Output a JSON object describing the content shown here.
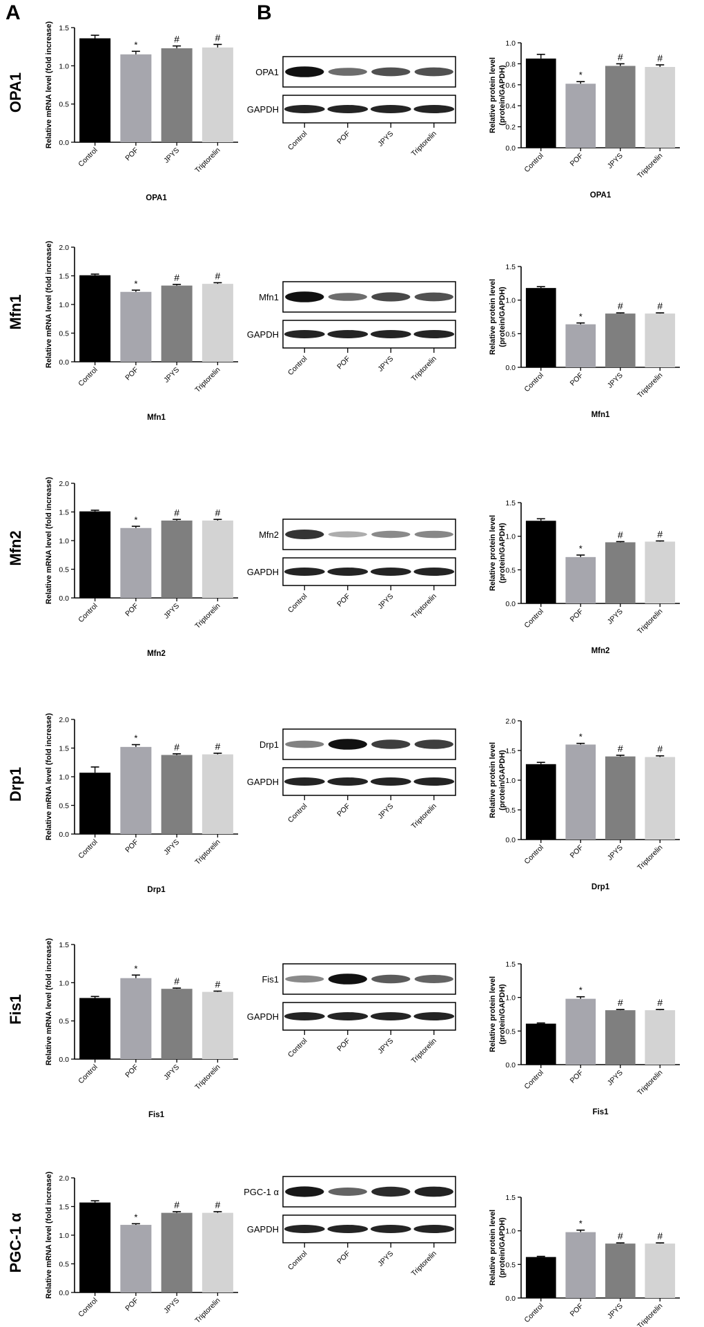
{
  "panel_labels": [
    "A",
    "B"
  ],
  "blot_lanes": [
    "Control",
    "POF",
    "JPYS",
    "Triptorelin"
  ],
  "loading_control": "GAPDH",
  "colors": [
    "#000000",
    "#a6a6ad",
    "#7f7f7f",
    "#d3d3d3"
  ],
  "chart_data": [
    {
      "row": "OPA1",
      "panel": "A",
      "type": "bar",
      "categories": [
        "Control",
        "POF",
        "JPYS",
        "Triptorelin"
      ],
      "values": [
        1.36,
        1.15,
        1.23,
        1.24
      ],
      "errors": [
        0.04,
        0.04,
        0.03,
        0.04
      ],
      "marks": [
        "",
        "*",
        "#",
        "#"
      ],
      "ylabel": "Relative mRNA level (fold increase)",
      "xlabel": "OPA1",
      "ylim": [
        0,
        1.5
      ],
      "yticks": [
        "0.0",
        "0.5",
        "1.0",
        "1.5"
      ]
    },
    {
      "row": "OPA1",
      "panel": "B",
      "type": "bar",
      "categories": [
        "Control",
        "POF",
        "JPYS",
        "Triptorelin"
      ],
      "values": [
        0.85,
        0.61,
        0.78,
        0.77
      ],
      "errors": [
        0.04,
        0.02,
        0.02,
        0.02
      ],
      "marks": [
        "",
        "*",
        "#",
        "#"
      ],
      "ylabel": "Relative protein level (protein/GAPDH)",
      "xlabel": "OPA1",
      "ylim": [
        0,
        1.0
      ],
      "yticks": [
        "0.0",
        "0.2",
        "0.4",
        "0.6",
        "0.8",
        "1.0"
      ]
    },
    {
      "row": "Mfn1",
      "panel": "A",
      "type": "bar",
      "categories": [
        "Control",
        "POF",
        "JPYS",
        "Triptorelin"
      ],
      "values": [
        1.51,
        1.22,
        1.33,
        1.36
      ],
      "errors": [
        0.02,
        0.03,
        0.02,
        0.02
      ],
      "marks": [
        "",
        "*",
        "#",
        "#"
      ],
      "ylabel": "Relative mRNA level (fold increase)",
      "xlabel": "Mfn1",
      "ylim": [
        0,
        2.0
      ],
      "yticks": [
        "0.0",
        "0.5",
        "1.0",
        "1.5",
        "2.0"
      ]
    },
    {
      "row": "Mfn1",
      "panel": "B",
      "type": "bar",
      "categories": [
        "Control",
        "POF",
        "JPYS",
        "Triptorelin"
      ],
      "values": [
        1.18,
        0.64,
        0.8,
        0.8
      ],
      "errors": [
        0.02,
        0.02,
        0.01,
        0.01
      ],
      "marks": [
        "",
        "*",
        "#",
        "#"
      ],
      "ylabel": "Relative protein level (protein/GAPDH)",
      "xlabel": "Mfn1",
      "ylim": [
        0,
        1.5
      ],
      "yticks": [
        "0.0",
        "0.5",
        "1.0",
        "1.5"
      ]
    },
    {
      "row": "Mfn2",
      "panel": "A",
      "type": "bar",
      "categories": [
        "Control",
        "POF",
        "JPYS",
        "Triptorelin"
      ],
      "values": [
        1.51,
        1.22,
        1.35,
        1.35
      ],
      "errors": [
        0.02,
        0.03,
        0.02,
        0.02
      ],
      "marks": [
        "",
        "*",
        "#",
        "#"
      ],
      "ylabel": "Relative mRNA level (fold increase)",
      "xlabel": "Mfn2",
      "ylim": [
        0,
        2.0
      ],
      "yticks": [
        "0.0",
        "0.5",
        "1.0",
        "1.5",
        "2.0"
      ]
    },
    {
      "row": "Mfn2",
      "panel": "B",
      "type": "bar",
      "categories": [
        "Control",
        "POF",
        "JPYS",
        "Triptorelin"
      ],
      "values": [
        1.23,
        0.69,
        0.91,
        0.92
      ],
      "errors": [
        0.03,
        0.03,
        0.01,
        0.01
      ],
      "marks": [
        "",
        "*",
        "#",
        "#"
      ],
      "ylabel": "Relative protein level (protein/GAPDH)",
      "xlabel": "Mfn2",
      "ylim": [
        0,
        1.5
      ],
      "yticks": [
        "0.0",
        "0.5",
        "1.0",
        "1.5"
      ]
    },
    {
      "row": "Drp1",
      "panel": "A",
      "type": "bar",
      "categories": [
        "Control",
        "POF",
        "JPYS",
        "Triptorelin"
      ],
      "values": [
        1.07,
        1.52,
        1.38,
        1.39
      ],
      "errors": [
        0.1,
        0.04,
        0.02,
        0.02
      ],
      "marks": [
        "",
        "*",
        "#",
        "#"
      ],
      "ylabel": "Relative mRNA level (fold increase)",
      "xlabel": "Drp1",
      "ylim": [
        0,
        2.0
      ],
      "yticks": [
        "0.0",
        "0.5",
        "1.0",
        "1.5",
        "2.0"
      ]
    },
    {
      "row": "Drp1",
      "panel": "B",
      "type": "bar",
      "categories": [
        "Control",
        "POF",
        "JPYS",
        "Triptorelin"
      ],
      "values": [
        1.27,
        1.6,
        1.4,
        1.39
      ],
      "errors": [
        0.03,
        0.02,
        0.02,
        0.02
      ],
      "marks": [
        "",
        "*",
        "#",
        "#"
      ],
      "ylabel": "Relative protein level (protein/GAPDH)",
      "xlabel": "Drp1",
      "ylim": [
        0,
        2.0
      ],
      "yticks": [
        "0.0",
        "0.5",
        "1.0",
        "1.5",
        "2.0"
      ]
    },
    {
      "row": "Fis1",
      "panel": "A",
      "type": "bar",
      "categories": [
        "Control",
        "POF",
        "JPYS",
        "Triptorelin"
      ],
      "values": [
        0.8,
        1.06,
        0.92,
        0.88
      ],
      "errors": [
        0.02,
        0.04,
        0.01,
        0.01
      ],
      "marks": [
        "",
        "*",
        "#",
        "#"
      ],
      "ylabel": "Relative mRNA level (fold increase)",
      "xlabel": "Fis1",
      "ylim": [
        0,
        1.5
      ],
      "yticks": [
        "0.0",
        "0.5",
        "1.0",
        "1.5"
      ]
    },
    {
      "row": "Fis1",
      "panel": "B",
      "type": "bar",
      "categories": [
        "Control",
        "POF",
        "JPYS",
        "Triptorelin"
      ],
      "values": [
        0.61,
        0.98,
        0.81,
        0.81
      ],
      "errors": [
        0.01,
        0.03,
        0.01,
        0.01
      ],
      "marks": [
        "",
        "*",
        "#",
        "#"
      ],
      "ylabel": "Relative protein level (protein/GAPDH)",
      "xlabel": "Fis1",
      "ylim": [
        0,
        1.5
      ],
      "yticks": [
        "0.0",
        "0.5",
        "1.0",
        "1.5"
      ]
    },
    {
      "row": "PGC-1 α",
      "panel": "A",
      "type": "bar",
      "categories": [
        "Control",
        "POF",
        "JPYS",
        "Triptorelin"
      ],
      "values": [
        1.57,
        1.18,
        1.39,
        1.39
      ],
      "errors": [
        0.03,
        0.02,
        0.02,
        0.02
      ],
      "marks": [
        "",
        "*",
        "#",
        "#"
      ],
      "ylabel": "Relative mRNA level (fold increase)",
      "xlabel": "PGC-1 α",
      "ylim": [
        0,
        2.0
      ],
      "yticks": [
        "0.0",
        "0.5",
        "1.0",
        "1.5",
        "2.0"
      ]
    },
    {
      "row": "PGC-1 α",
      "panel": "B",
      "type": "bar",
      "categories": [
        "Control",
        "POF",
        "JPYS",
        "Triptorelin"
      ],
      "values": [
        0.61,
        0.98,
        0.81,
        0.81
      ],
      "errors": [
        0.01,
        0.03,
        0.01,
        0.01
      ],
      "marks": [
        "",
        "*",
        "#",
        "#"
      ],
      "ylabel": "Relative protein level (protein/GAPDH)",
      "xlabel": "PGC-1 α",
      "ylim": [
        0,
        1.5
      ],
      "yticks": [
        "0.0",
        "0.5",
        "1.0",
        "1.5"
      ]
    }
  ],
  "blots": [
    {
      "label": "OPA1",
      "band_strengths": [
        0.95,
        0.45,
        0.6,
        0.6
      ]
    },
    {
      "label": "Mfn1",
      "band_strengths": [
        0.95,
        0.45,
        0.65,
        0.6
      ]
    },
    {
      "label": "Mfn2",
      "band_strengths": [
        0.75,
        0.12,
        0.3,
        0.32
      ]
    },
    {
      "label": "Drp1",
      "band_strengths": [
        0.35,
        0.95,
        0.7,
        0.7
      ]
    },
    {
      "label": "Fis1",
      "band_strengths": [
        0.3,
        0.95,
        0.55,
        0.5
      ]
    },
    {
      "label": "PGC-1 α",
      "band_strengths": [
        0.9,
        0.5,
        0.8,
        0.85
      ]
    }
  ]
}
